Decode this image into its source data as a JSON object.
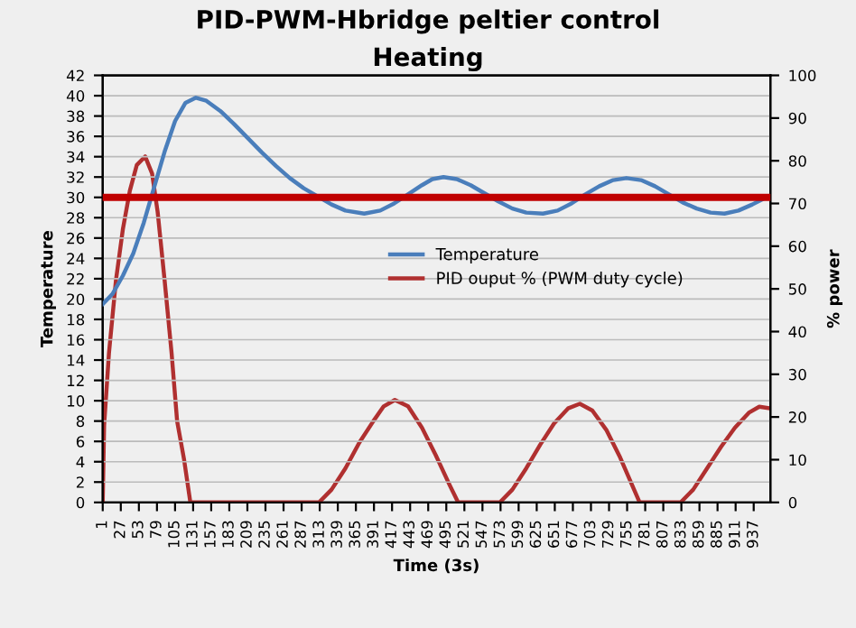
{
  "chart_data": {
    "type": "line",
    "title": "PID-PWM-Hbridge peltier control",
    "subtitle": "Heating",
    "xlabel": "Time (3s)",
    "ylabel": "Temperature",
    "y2label": "% power",
    "xlim": [
      1,
      961
    ],
    "xticks": [
      1,
      27,
      53,
      79,
      105,
      131,
      157,
      183,
      209,
      235,
      261,
      287,
      313,
      339,
      365,
      391,
      417,
      443,
      469,
      495,
      521,
      547,
      573,
      599,
      625,
      651,
      677,
      703,
      729,
      755,
      781,
      807,
      833,
      859,
      885,
      911,
      937
    ],
    "ylim": [
      0,
      42
    ],
    "yticks": [
      0,
      2,
      4,
      6,
      8,
      10,
      12,
      14,
      16,
      18,
      20,
      22,
      24,
      26,
      28,
      30,
      32,
      34,
      36,
      38,
      40,
      42
    ],
    "y2lim": [
      0,
      100
    ],
    "y2ticks": [
      0,
      10,
      20,
      30,
      40,
      50,
      60,
      70,
      80,
      90,
      100
    ],
    "grid": "y",
    "legend": "center",
    "marker": "none",
    "line_style": "solid",
    "ref_lines": [
      {
        "axis": "y",
        "value": 30,
        "color": "#c00000"
      }
    ],
    "series": [
      {
        "name": "Temperature",
        "color": "#4a7ebb",
        "x": [
          1,
          15,
          30,
          45,
          60,
          75,
          90,
          105,
          120,
          135,
          150,
          170,
          190,
          210,
          230,
          250,
          270,
          290,
          310,
          330,
          350,
          377,
          400,
          420,
          440,
          460,
          475,
          491,
          510,
          530,
          550,
          570,
          590,
          610,
          634,
          655,
          675,
          695,
          715,
          735,
          754,
          775,
          795,
          815,
          835,
          855,
          875,
          895,
          915,
          935,
          955
        ],
        "values": [
          19.5,
          20.5,
          22.3,
          24.5,
          27.5,
          31,
          34.5,
          37.5,
          39.3,
          39.8,
          39.5,
          38.5,
          37.2,
          35.8,
          34.4,
          33.1,
          31.9,
          30.9,
          30.1,
          29.3,
          28.7,
          28.4,
          28.7,
          29.4,
          30.3,
          31.2,
          31.8,
          32.0,
          31.8,
          31.2,
          30.4,
          29.6,
          28.9,
          28.5,
          28.4,
          28.7,
          29.4,
          30.3,
          31.1,
          31.7,
          31.9,
          31.7,
          31.1,
          30.3,
          29.5,
          28.9,
          28.5,
          28.4,
          28.7,
          29.3,
          30.0
        ]
      },
      {
        "name": "PID ouput % (PWM duty cycle)",
        "color": "#b03030",
        "axis": "y2",
        "x": [
          1,
          3,
          10,
          20,
          30,
          40,
          50,
          62,
          72,
          80,
          90,
          100,
          108,
          118,
          127,
          312,
          330,
          350,
          370,
          390,
          405,
          421,
          440,
          460,
          480,
          500,
          512,
          572,
          590,
          610,
          630,
          650,
          670,
          687,
          705,
          725,
          745,
          765,
          773,
          832,
          850,
          870,
          890,
          910,
          930,
          945,
          961
        ],
        "values": [
          0,
          18,
          35,
          52,
          64,
          73,
          79,
          81,
          77,
          68,
          52,
          35,
          19,
          10,
          0,
          0,
          3,
          8,
          14,
          19,
          22.5,
          24,
          22.5,
          17.5,
          11,
          4,
          0,
          0,
          3,
          8,
          13.5,
          18.5,
          22,
          23.1,
          21.5,
          17,
          10.5,
          3,
          0,
          0,
          3,
          8,
          13,
          17.5,
          21,
          22.4,
          22
        ]
      }
    ]
  }
}
